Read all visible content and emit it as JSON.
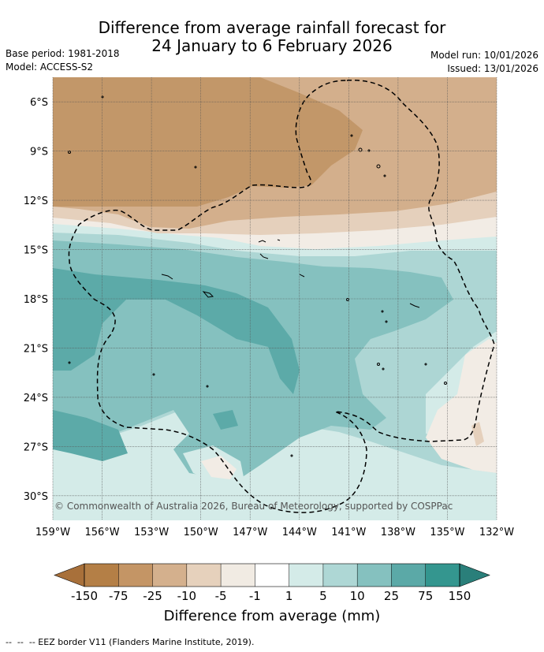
{
  "title": {
    "line1": "Difference from average rainfall forecast for",
    "line2": "24 January to 6 February 2026"
  },
  "meta_left": {
    "base_period": "Base period: 1981-2018",
    "model": "Model: ACCESS-S2"
  },
  "meta_right": {
    "model_run": "Model run: 10/01/2026",
    "issued": "Issued: 13/01/2026"
  },
  "map": {
    "lon_range": [
      -159,
      -132
    ],
    "lat_range": [
      -31.5,
      -4.5
    ],
    "lon_ticks": [
      "159°W",
      "156°W",
      "153°W",
      "150°W",
      "147°W",
      "144°W",
      "141°W",
      "138°W",
      "135°W",
      "132°W"
    ],
    "lat_ticks": [
      "6°S",
      "9°S",
      "12°S",
      "15°S",
      "18°S",
      "21°S",
      "24°S",
      "27°S",
      "30°S"
    ],
    "grid": true,
    "copyright": "© Commonwealth of Australia 2026, Bureau of Meteorology, supported by COSPPac"
  },
  "colorbar": {
    "labels": [
      "-150",
      "-75",
      "-25",
      "-10",
      "-5",
      "-1",
      "1",
      "5",
      "10",
      "25",
      "75",
      "150"
    ],
    "colors": [
      "#a8703a",
      "#b47f46",
      "#c49565",
      "#d4b08d",
      "#e6d1bc",
      "#f1ebe3",
      "#ffffff",
      "#d4ebe8",
      "#aed7d5",
      "#85c1bf",
      "#5ba9a7",
      "#34968f",
      "#2a7f7a"
    ],
    "title": "Difference from average (mm)"
  },
  "footer": "--  --  -- EEZ border V11 (Flanders Marine Institute, 2019).",
  "fill_colors": {
    "dry_dark": "#c29769",
    "dry_mid": "#d3af8c",
    "dry_light": "#e5d0bc",
    "neutral": "#f2ece5",
    "wet_light": "#d4ebe8",
    "wet_mid": "#add6d4",
    "wet_med": "#85c1bf",
    "wet_dark": "#5caaa8",
    "wet_deep": "#49a19c"
  }
}
